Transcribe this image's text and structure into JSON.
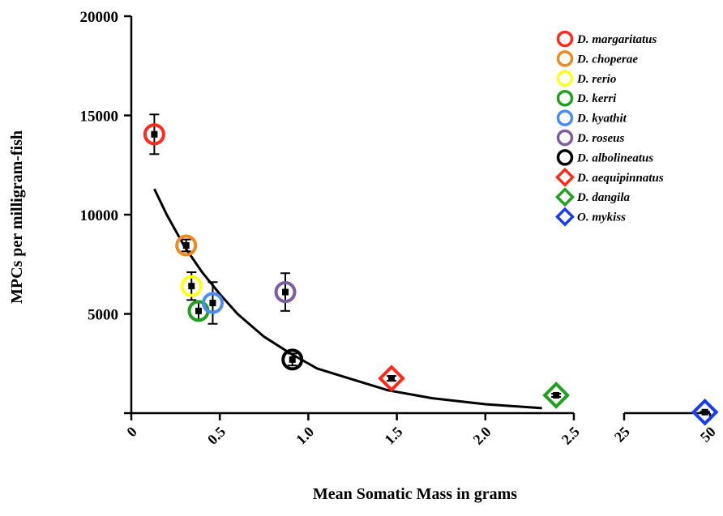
{
  "chart_data": {
    "type": "scatter",
    "title": "",
    "xlabel": "Mean Somatic Mass in grams",
    "ylabel": "MPCs per milligram-fish",
    "ylim": [
      0,
      20000
    ],
    "y_ticks": [
      {
        "value": 0,
        "label": ""
      },
      {
        "value": 5000,
        "label": "5000"
      },
      {
        "value": 10000,
        "label": "10000"
      },
      {
        "value": 15000,
        "label": "15000"
      },
      {
        "value": 20000,
        "label": "20000"
      }
    ],
    "x_axis": {
      "broken": true,
      "segment1": {
        "range": [
          0,
          2.5
        ],
        "ticks": [
          {
            "value": 0,
            "label": "0"
          },
          {
            "value": 0.5,
            "label": "0.5"
          },
          {
            "value": 1.0,
            "label": "1.0"
          },
          {
            "value": 1.5,
            "label": "1.5"
          },
          {
            "value": 2.0,
            "label": "2.0"
          },
          {
            "value": 2.5,
            "label": "2.5"
          }
        ]
      },
      "segment2": {
        "range": [
          25,
          50
        ],
        "ticks": [
          {
            "value": 25,
            "label": "25"
          },
          {
            "value": 50,
            "label": "50"
          }
        ]
      }
    },
    "series": [
      {
        "name": "D. margaritatus",
        "marker": "circle",
        "color": "#ff2a1a",
        "x": 0.13,
        "y": 14050,
        "err": 1000
      },
      {
        "name": "D. choperae",
        "marker": "circle",
        "color": "#ee8a1e",
        "x": 0.31,
        "y": 8450,
        "err": 300
      },
      {
        "name": "D. rerio",
        "marker": "circle",
        "color": "#ffff19",
        "x": 0.34,
        "y": 6400,
        "err": 700
      },
      {
        "name": "D. kerri",
        "marker": "circle",
        "color": "#1fa01f",
        "x": 0.38,
        "y": 5150,
        "err": 450
      },
      {
        "name": "D. kyathit",
        "marker": "circle",
        "color": "#4a8cf0",
        "x": 0.46,
        "y": 5550,
        "err": 1050
      },
      {
        "name": "D. roseus",
        "marker": "circle",
        "color": "#7e5d9e",
        "x": 0.87,
        "y": 6100,
        "err": 950
      },
      {
        "name": "D. albolineatus",
        "marker": "circle",
        "color": "#000000",
        "x": 0.91,
        "y": 2700,
        "err": 300
      },
      {
        "name": "D. aequipinnatus",
        "marker": "diamond",
        "color": "#ff2a1a",
        "x": 1.47,
        "y": 1750,
        "err": 120
      },
      {
        "name": "D. dangila",
        "marker": "diamond",
        "color": "#1fa01f",
        "x": 2.4,
        "y": 900,
        "err": 80
      },
      {
        "name": "O. mykiss",
        "marker": "diamond",
        "color": "#1a3cf0",
        "x": 48.5,
        "y": 50,
        "err": 30
      }
    ],
    "fit_curve": {
      "x": [
        0.13,
        0.2,
        0.3,
        0.4,
        0.5,
        0.6,
        0.75,
        0.9,
        1.05,
        1.25,
        1.45,
        1.7,
        2.0,
        2.32
      ],
      "y": [
        11300,
        10000,
        8400,
        7100,
        6000,
        5000,
        3850,
        3000,
        2250,
        1700,
        1150,
        750,
        450,
        250
      ]
    },
    "legend_position": "top-right"
  }
}
